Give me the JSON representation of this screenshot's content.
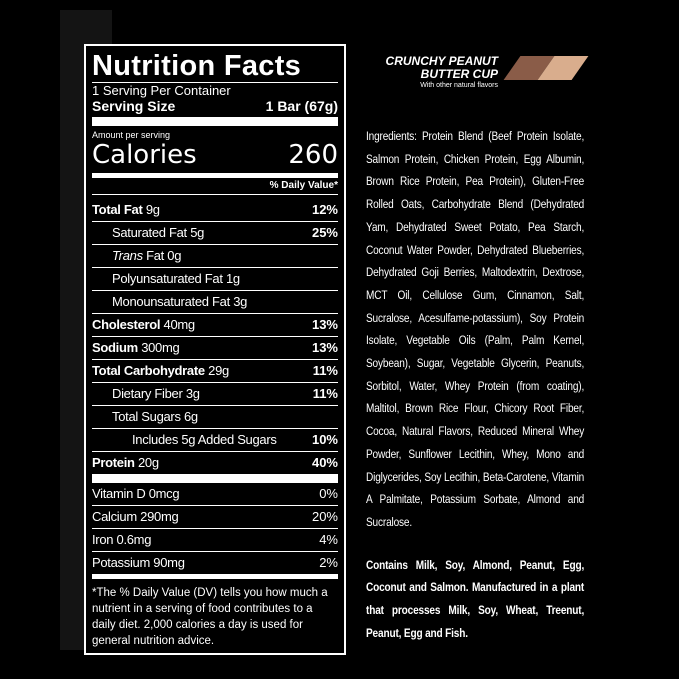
{
  "label": {
    "title": "Nutrition Facts",
    "servings": "1 Serving Per Container",
    "serving_size_label": "Serving Size",
    "serving_size_value": "1 Bar (67g)",
    "amount_per_serving": "Amount per serving",
    "calories_label": "Calories",
    "calories_value": "260",
    "dv_header": "% Daily Value*",
    "nutrients": [
      {
        "name": "Total Fat",
        "amount": "9g",
        "dv": "12%"
      },
      {
        "name": "Saturated Fat",
        "amount": "5g",
        "dv": "25%"
      },
      {
        "name": "Trans",
        "amount": "Fat 0g",
        "dv": ""
      },
      {
        "name": "Polyunsaturated Fat",
        "amount": "1g",
        "dv": ""
      },
      {
        "name": "Monounsaturated Fat",
        "amount": "3g",
        "dv": ""
      },
      {
        "name": "Cholesterol",
        "amount": "40mg",
        "dv": "13%"
      },
      {
        "name": "Sodium",
        "amount": "300mg",
        "dv": "13%"
      },
      {
        "name": "Total Carbohydrate",
        "amount": "29g",
        "dv": "11%"
      },
      {
        "name": "Dietary Fiber",
        "amount": "3g",
        "dv": "11%"
      },
      {
        "name": "Total Sugars",
        "amount": "6g",
        "dv": ""
      },
      {
        "name": "Includes 5g Added Sugars",
        "amount": "",
        "dv": "10%"
      },
      {
        "name": "Protein",
        "amount": "20g",
        "dv": "40%"
      }
    ],
    "vitamins": [
      {
        "name": "Vitamin D 0mcg",
        "dv": "0%"
      },
      {
        "name": "Calcium 290mg",
        "dv": "20%"
      },
      {
        "name": "Iron 0.6mg",
        "dv": "4%"
      },
      {
        "name": "Potassium 90mg",
        "dv": "2%"
      }
    ],
    "footnote": "*The % Daily Value (DV) tells you how much a nutrient in a serving of food contributes to a daily diet. 2,000 calories a day is used for general nutrition advice."
  },
  "flavor": {
    "line1": "CRUNCHY PEANUT",
    "line2": "BUTTER CUP",
    "sub": "With other natural flavors",
    "colors": [
      "#8a5c48",
      "#d9ad8d"
    ]
  },
  "ingredients": "Ingredients: Protein Blend (Beef Protein Isolate, Salmon Protein, Chicken Protein, Egg Albumin, Brown Rice Protein, Pea Protein), Gluten-Free Rolled Oats, Carbohydrate Blend (Dehydrated Yam, Dehydrated Sweet Potato, Pea Starch, Coconut Water Powder, Dehydrated Blueberries, Dehydrated Goji Berries, Maltodextrin, Dextrose, MCT Oil, Cellulose Gum, Cinnamon, Salt, Sucralose, Acesulfame-potassium), Soy Protein Isolate, Vegetable Oils (Palm, Palm Kernel, Soybean), Sugar, Vegetable Glycerin, Peanuts, Sorbitol, Water, Whey Protein (from coating), Maltitol, Brown Rice Flour, Chicory Root Fiber, Cocoa, Natural Flavors, Reduced Mineral Whey Powder, Sunflower Lecithin, Whey, Mono and Diglycerides, Soy Lecithin, Beta-Carotene, Vitamin A Palmitate, Potassium Sorbate, Almond and Sucralose.",
  "allergens": "Contains Milk, Soy, Almond, Peanut, Egg, Coconut and Salmon. Manufactured in a plant that processes Milk, Soy, Wheat, Treenut, Peanut, Egg and Fish."
}
